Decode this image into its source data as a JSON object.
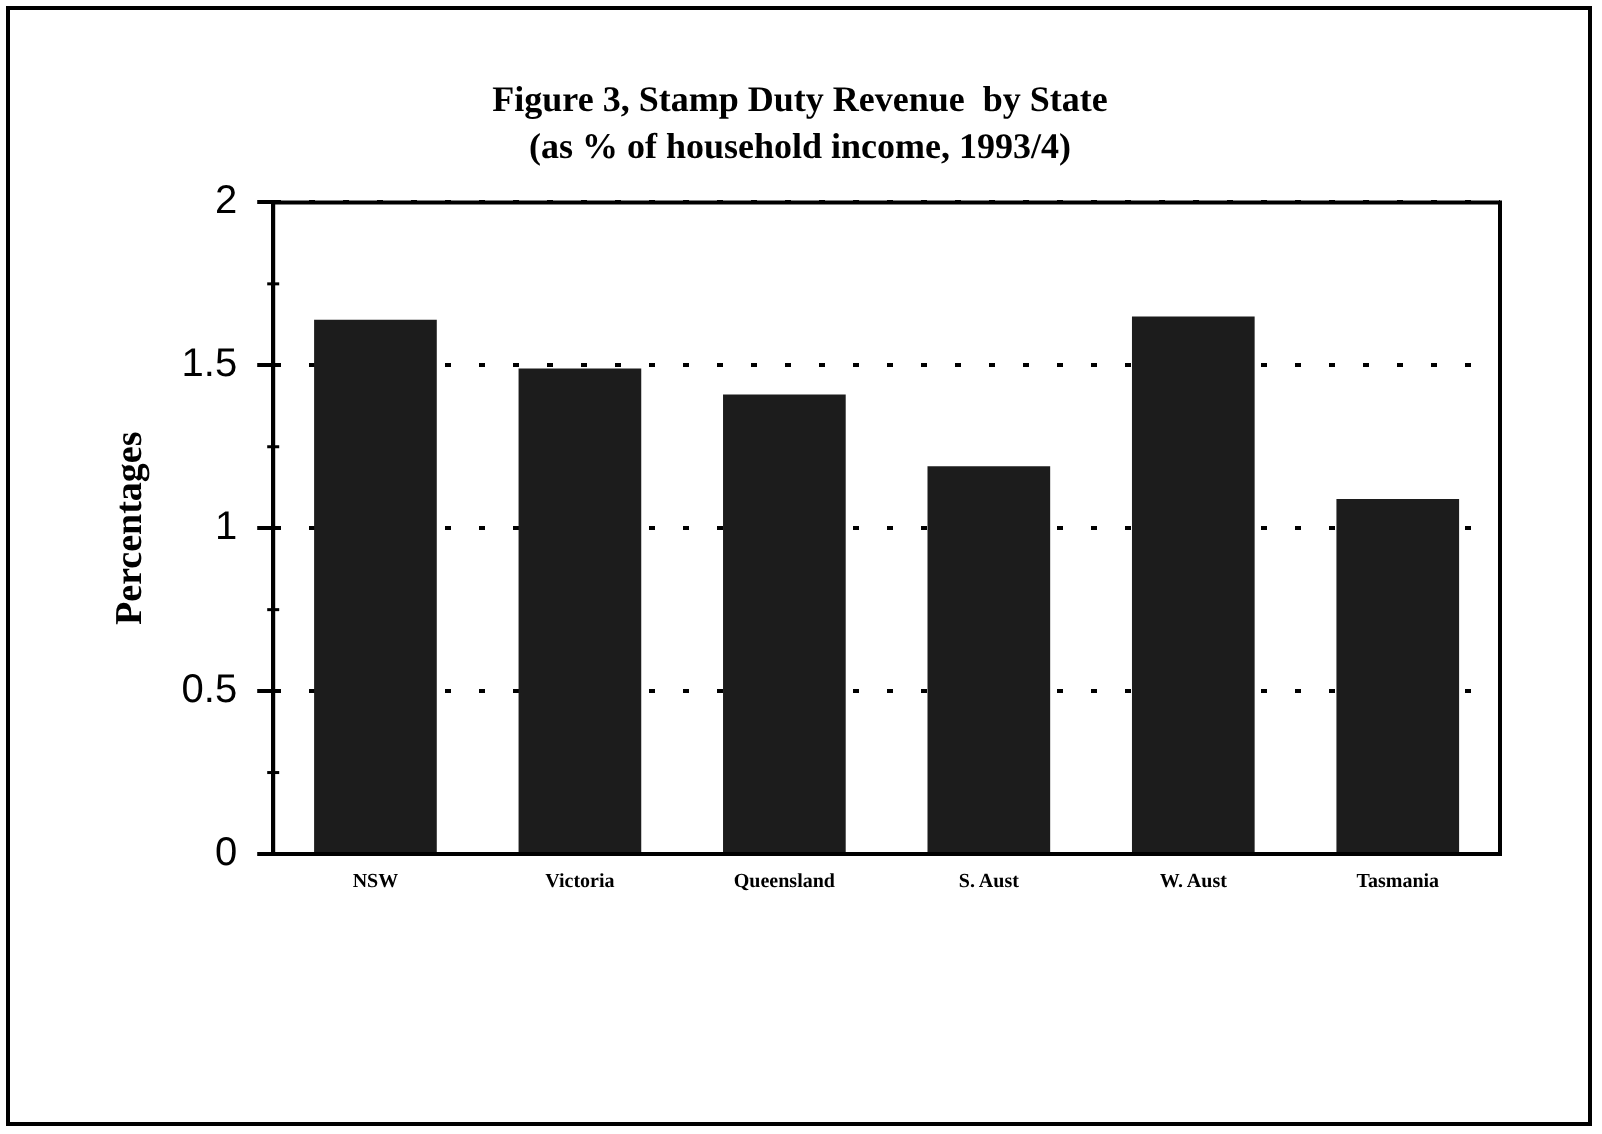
{
  "chart_data": {
    "type": "bar",
    "title": "Figure 3, Stamp Duty Revenue  by State",
    "subtitle": "(as % of household income, 1993/4)",
    "ylabel": "Percentages",
    "categories": [
      "NSW",
      "Victoria",
      "Queensland",
      "S. Aust",
      "W. Aust",
      "Tasmania"
    ],
    "values": [
      1.64,
      1.49,
      1.41,
      1.19,
      1.65,
      1.09
    ],
    "color": "#1c1c1c",
    "ylim": [
      0,
      2
    ],
    "yticks": [
      0,
      0.5,
      1,
      1.5,
      2
    ],
    "grid": "y",
    "legend": false
  }
}
